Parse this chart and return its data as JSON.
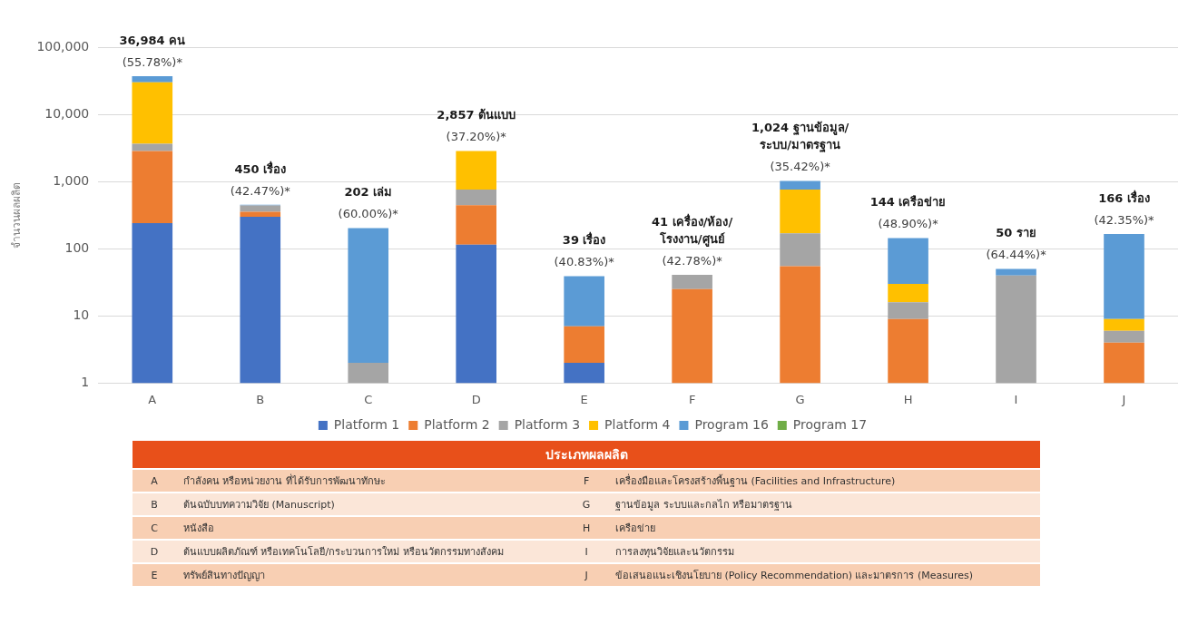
{
  "chart_data": [
    {
      "type": "bar",
      "stacked": true,
      "log": "y",
      "ylabel": "จำนวนผลผลิต",
      "categories": [
        "A",
        "B",
        "C",
        "D",
        "E",
        "F",
        "G",
        "H",
        "I",
        "J"
      ],
      "series": [
        {
          "name": "Platform 1",
          "color": "#4472c4",
          "values": [
            240,
            300,
            null,
            115,
            2,
            null,
            null,
            null,
            null,
            null
          ]
        },
        {
          "name": "Platform 2",
          "color": "#ed7d31",
          "values": [
            2600,
            55,
            null,
            330,
            5,
            25,
            55,
            9,
            null,
            4
          ]
        },
        {
          "name": "Platform 3",
          "color": "#a5a5a5",
          "values": [
            800,
            85,
            2,
            315,
            null,
            16,
            115,
            7,
            40,
            2
          ]
        },
        {
          "name": "Platform 4",
          "color": "#ffc000",
          "values": [
            26400,
            null,
            null,
            2097,
            null,
            null,
            590,
            14,
            null,
            3
          ]
        },
        {
          "name": "Program 16",
          "color": "#5b9bd5",
          "values": [
            6944,
            10,
            200,
            null,
            32,
            null,
            264,
            114,
            10,
            157
          ]
        },
        {
          "name": "Program 17",
          "color": "#70ad47",
          "values": [
            null,
            null,
            null,
            null,
            null,
            null,
            null,
            null,
            null,
            null
          ]
        }
      ],
      "ylim": [
        1,
        100000
      ],
      "yticks": [
        1,
        10,
        100,
        {
          "value": 1000,
          "label": "1,000"
        },
        {
          "value": 10000,
          "label": "10,000"
        },
        {
          "value": 100000,
          "label": "100,000"
        }
      ],
      "grid": "y",
      "legend": "bottom",
      "annotations": [
        {
          "text": "(55.78%)*",
          "x": "A",
          "y": 36984
        },
        {
          "text": "(42.47%)*",
          "x": "B",
          "y": 450
        },
        {
          "text": "(60.00%)*",
          "x": "C",
          "y": 202
        },
        {
          "text": "(37.20%)*",
          "x": "D",
          "y": 2857
        },
        {
          "text": "(40.83%)*",
          "x": "E",
          "y": 39
        },
        {
          "text": "(42.78%)*",
          "x": "F",
          "y": 41
        },
        {
          "text": "(35.42%)*",
          "x": "G",
          "y": 1024
        },
        {
          "text": "(48.90%)*",
          "x": "H",
          "y": 144
        },
        {
          "text": "(64.44%)*",
          "x": "I",
          "y": 50
        },
        {
          "text": "(42.35%)*",
          "x": "J",
          "y": 166
        }
      ],
      "totals": [
        "36,984 คน",
        "450 เรื่อง",
        "202 เล่ม",
        "2,857 ต้นแบบ",
        "39 เรื่อง",
        "41 เครื่อง/ห้อง/\nโรงงาน/ศูนย์",
        "1,024 ฐานข้อมูล/\nระบบ/มาตรฐาน",
        "144 เครือข่าย",
        "50 ราย",
        "166 เรื่อง"
      ]
    },
    {
      "type": "other",
      "title": "ประเภทผลผลิต",
      "categories": [
        "A",
        "B",
        "C",
        "D",
        "E",
        "F",
        "G",
        "H",
        "I",
        "J"
      ],
      "annotations": [
        "กำลังคน หรือหน่วยงาน ที่ได้รับการพัฒนาทักษะ",
        "ต้นฉบับบทความวิจัย (Manuscript)",
        "หนังสือ",
        "ต้นแบบผลิตภัณฑ์ หรือเทคโนโลยี/กระบวนการใหม่ หรือนวัตกรรมทางสังคม",
        "ทรัพย์สินทางปัญญา",
        "เครื่องมือและโครงสร้างพื้นฐาน (Facilities and Infrastructure)",
        "ฐานข้อมูล ระบบและกลไก หรือมาตรฐาน",
        "เครือข่าย",
        "การลงทุนวิจัยและนวัตกรรม",
        "ข้อเสนอแนะเชิงนโยบาย (Policy Recommendation) และมาตรการ (Measures)"
      ]
    }
  ]
}
